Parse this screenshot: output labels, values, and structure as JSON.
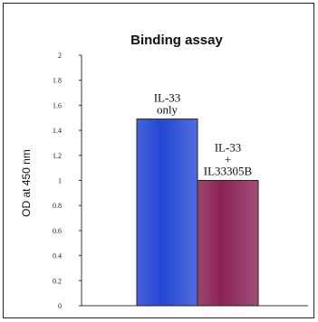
{
  "chart_data": {
    "type": "bar",
    "title": "Binding assay",
    "xlabel": "",
    "ylabel": "OD at 450 nm",
    "ylim": [
      0,
      2
    ],
    "yticks": [
      "0",
      "0.2",
      "0.4",
      "0.6",
      "0.8",
      "1",
      "1.2",
      "1.4",
      "1.6",
      "1.8",
      "2"
    ],
    "grid": false,
    "categories": [
      {
        "lines": [
          "IL-33",
          "only"
        ]
      },
      {
        "lines": [
          "IL-33",
          "+",
          "IL33305B"
        ]
      }
    ],
    "values": [
      1.49,
      1.0
    ],
    "colors": [
      "#2447d4",
      "#8a2456"
    ]
  }
}
